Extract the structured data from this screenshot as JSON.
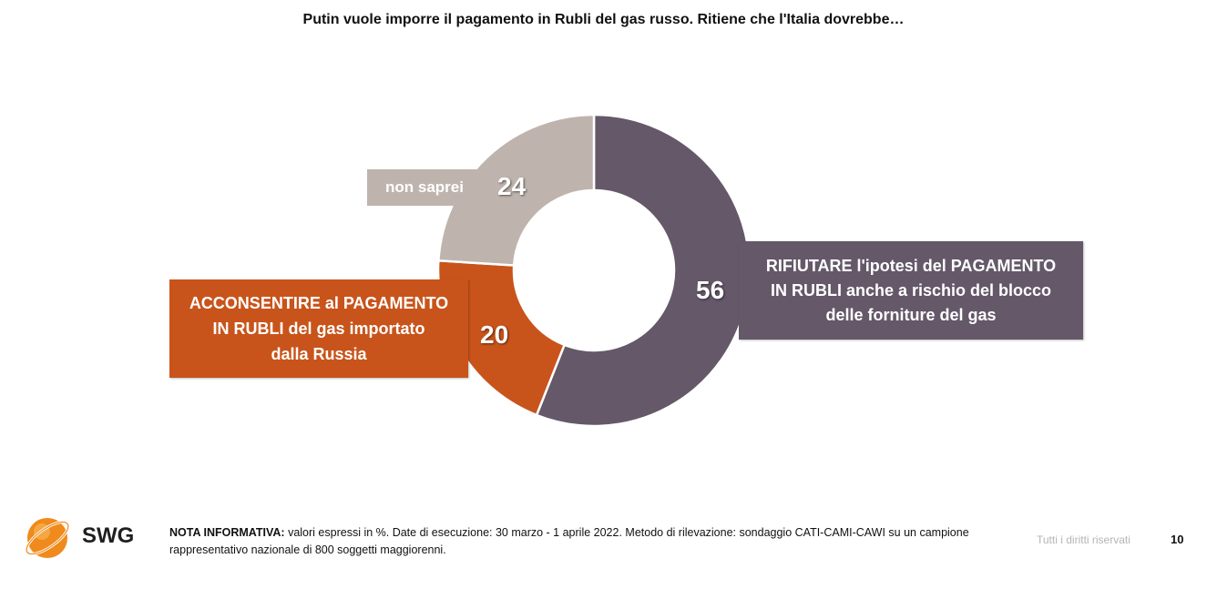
{
  "title": "Putin vuole imporre il pagamento in Rubli del gas russo. Ritiene che l'Italia dovrebbe…",
  "chart_data": {
    "type": "pie",
    "variant": "donut",
    "start_angle_deg": 0,
    "direction": "clockwise",
    "slices": [
      {
        "label": "RIFIUTARE l'ipotesi del PAGAMENTO IN RUBLI anche a rischio del blocco delle forniture del gas",
        "value": 56,
        "value_label": "56",
        "color": "#645869"
      },
      {
        "label": "ACCONSENTIRE al PAGAMENTO IN RUBLI del gas importato dalla Russia",
        "value": 20,
        "value_label": "20",
        "color": "#C8541B"
      },
      {
        "label": "non saprei",
        "value": 24,
        "value_label": "24",
        "color": "#BEB4AD"
      }
    ]
  },
  "callouts": {
    "rifiutare_lines": [
      "RIFIUTARE l'ipotesi del PAGAMENTO",
      "IN RUBLI anche a rischio del blocco",
      "delle forniture del gas"
    ],
    "acconsentire_lines": [
      "ACCONSENTIRE al PAGAMENTO",
      "IN RUBLI del gas importato",
      "dalla Russia"
    ],
    "non_saprei": "non saprei"
  },
  "footer": {
    "brand": "SWG",
    "note_label": "NOTA INFORMATIVA:",
    "note_text": " valori espressi in %. Date di esecuzione: 30 marzo - 1 aprile 2022. Metodo di rilevazione: sondaggio CATI-CAMI-CAWI su un campione rappresentativo nazionale di 800 soggetti maggiorenni.",
    "rights": "Tutti i diritti riservati",
    "page_number": "10"
  },
  "colors": {
    "rifiutare": "#645869",
    "acconsentire": "#C8541B",
    "non_saprei": "#BEB4AD",
    "logo_orange": "#F08A1C"
  },
  "icons": {
    "logo": "swg-globe-logo"
  }
}
